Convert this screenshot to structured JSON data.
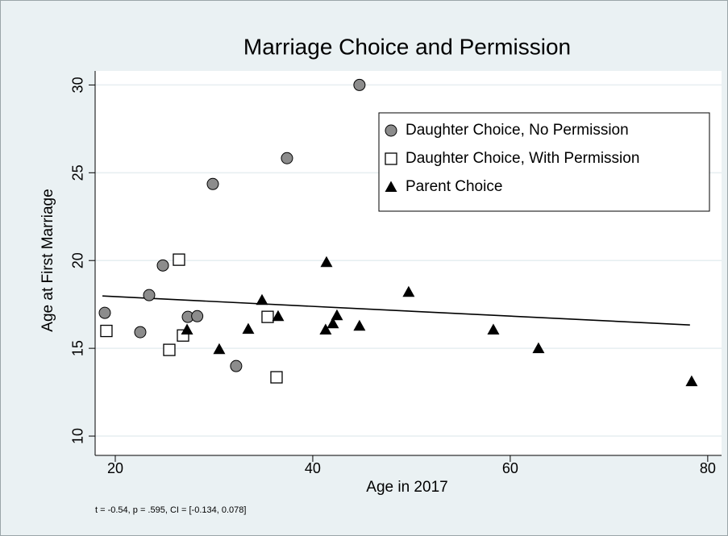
{
  "chart_data": {
    "type": "scatter",
    "title": "Marriage Choice and Permission",
    "x_label": "Age in 2017",
    "y_label": "Age at First Marriage",
    "note": "t = -0.54, p = .595, CI = [-0.134, 0.078]",
    "xlim": [
      17.96,
      81.4
    ],
    "ylim": [
      8.9,
      30.8
    ],
    "xticks": [
      20,
      40,
      60,
      80
    ],
    "yticks": [
      10,
      15,
      20,
      25,
      30
    ],
    "grid": true,
    "legend": "upper right",
    "series": [
      {
        "name": "Daughter Choice, No Permission",
        "color": "#8c8c8c",
        "marker": "circle",
        "x": [
          18.94,
          22.53,
          23.43,
          24.82,
          27.35,
          28.3,
          29.88,
          32.24,
          37.39,
          44.73
        ],
        "values": [
          17.02,
          15.92,
          18.03,
          19.72,
          16.79,
          16.83,
          24.36,
          13.99,
          25.83,
          30.0
        ]
      },
      {
        "name": "Daughter Choice, With Permission",
        "color": "#ffffff",
        "marker": "square",
        "x": [
          19.1,
          25.47,
          26.45,
          26.86,
          35.43,
          36.33
        ],
        "values": [
          15.99,
          14.91,
          20.05,
          15.73,
          16.79,
          13.35
        ]
      },
      {
        "name": "Parent Choice",
        "color": "#000000",
        "marker": "triangle",
        "x": [
          27.27,
          30.53,
          33.47,
          34.86,
          36.49,
          41.39,
          41.3,
          42.04,
          42.45,
          44.73,
          49.71,
          58.29,
          62.86,
          78.37
        ],
        "values": [
          16.06,
          14.95,
          16.1,
          17.75,
          16.83,
          19.91,
          16.06,
          16.42,
          16.88,
          16.28,
          18.21,
          16.06,
          15.0,
          13.12
        ]
      }
    ],
    "fit": {
      "x": [
        18.7,
        78.2
      ],
      "values": [
        17.98,
        16.33
      ]
    }
  }
}
